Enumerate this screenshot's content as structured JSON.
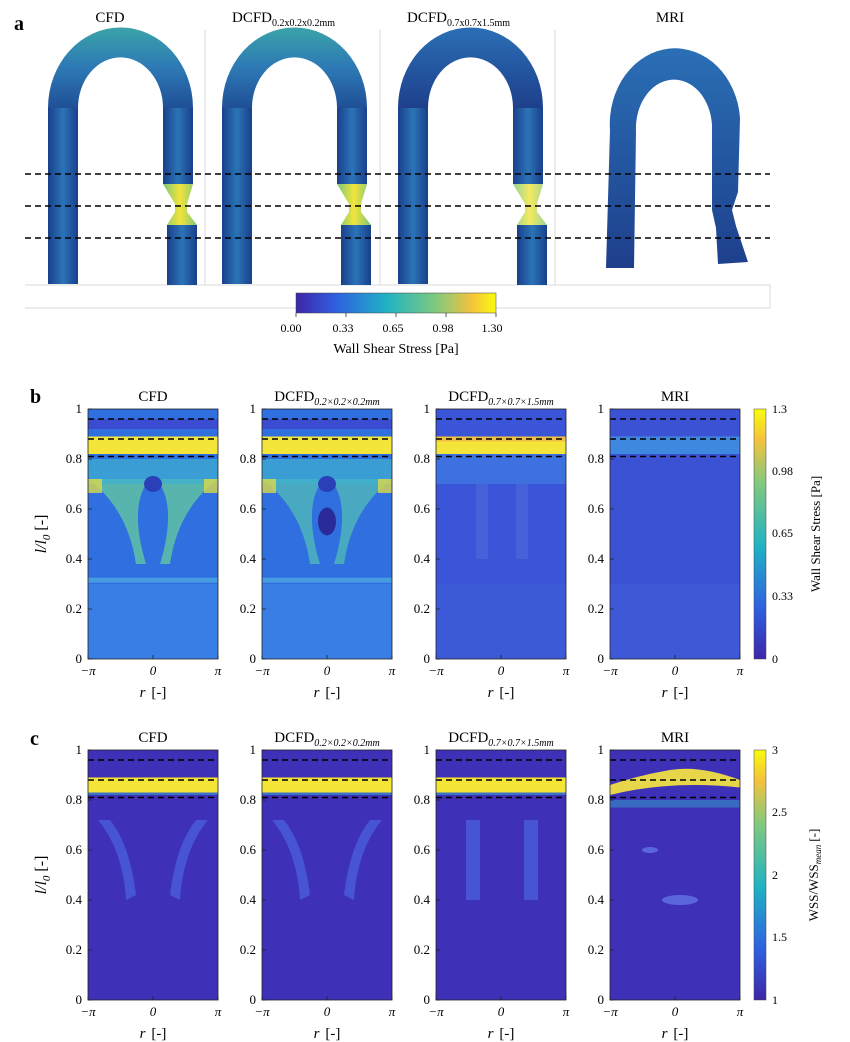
{
  "figure": {
    "panel_a": {
      "label": "a",
      "titles": [
        {
          "main": "CFD",
          "sub": ""
        },
        {
          "main": "DCFD",
          "sub": "0.2x0.2x0.2mm"
        },
        {
          "main": "DCFD",
          "sub": "0.7x0.7x1.5mm"
        },
        {
          "main": "MRI",
          "sub": ""
        }
      ],
      "colorbar": {
        "ticks": [
          "0.00",
          "0.33",
          "0.65",
          "0.98",
          "1.30"
        ],
        "label": "Wall Shear Stress [Pa]"
      }
    },
    "panel_b": {
      "label": "b",
      "colorbar_ticks": [
        "1.3",
        "0.98",
        "0.65",
        "0.33",
        "0"
      ],
      "colorbar_label": "Wall Shear Stress [Pa]"
    },
    "panel_c": {
      "label": "c",
      "colorbar_ticks": [
        "3",
        "2.5",
        "2",
        "1.5",
        "1"
      ],
      "colorbar_label": "WSS/WSS",
      "colorbar_label_sub": "mean",
      "colorbar_label_unit": "[-]"
    },
    "map_titles": [
      {
        "main": "CFD",
        "sub": ""
      },
      {
        "main": "DCFD",
        "sub": "0.2×0.2×0.2mm"
      },
      {
        "main": "DCFD",
        "sub": "0.7×0.7×1.5mm"
      },
      {
        "main": "MRI",
        "sub": ""
      }
    ],
    "y_ticks": [
      "1",
      "0.8",
      "0.6",
      "0.4",
      "0.2",
      "0"
    ],
    "x_ticks": [
      "−π",
      "0",
      "π"
    ],
    "ylabel": "l/l",
    "ylabel_sub": "0",
    "ylabel_unit": "[-]",
    "xlabel": "r",
    "xlabel_unit": "[-]"
  },
  "colors": {
    "parula_dark": "#3e26a8",
    "parula_blue": "#2f5fe0",
    "parula_teal": "#1fb2c4",
    "parula_green": "#7fc97f",
    "parula_yellow": "#f9fb0e"
  }
}
